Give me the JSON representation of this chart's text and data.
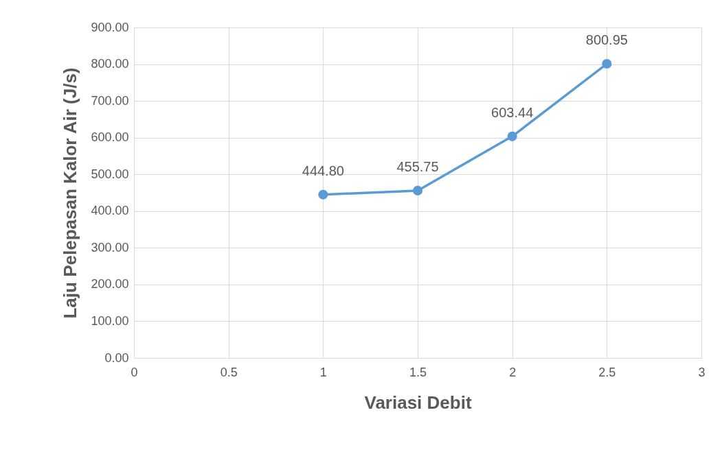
{
  "chart_data": {
    "type": "line",
    "xlabel": "Variasi Debit",
    "ylabel": "Laju Pelepasan Kalor Air (J/s)",
    "x": [
      1,
      1.5,
      2,
      2.5
    ],
    "series": [
      {
        "color": "#5b9bd5",
        "values": [
          444.8,
          455.75,
          603.44,
          800.95
        ],
        "value_labels": [
          "444.80",
          "455.75",
          "603.44",
          "800.95"
        ]
      }
    ],
    "xlim": [
      0,
      3
    ],
    "xticks": [
      0,
      0.5,
      1,
      1.5,
      2,
      2.5,
      3
    ],
    "ylim": [
      0,
      900
    ],
    "yticks": [
      {
        "value": 0,
        "label": "0.00"
      },
      {
        "value": 100,
        "label": "100.00"
      },
      {
        "value": 200,
        "label": "200.00"
      },
      {
        "value": 300,
        "label": "300.00"
      },
      {
        "value": 400,
        "label": "400.00"
      },
      {
        "value": 500,
        "label": "500.00"
      },
      {
        "value": 600,
        "label": "600.00"
      },
      {
        "value": 700,
        "label": "700.00"
      },
      {
        "value": 800,
        "label": "800.00"
      },
      {
        "value": 900,
        "label": "900.00"
      }
    ],
    "grid": true,
    "marker": "circle",
    "line_style": "solid"
  }
}
